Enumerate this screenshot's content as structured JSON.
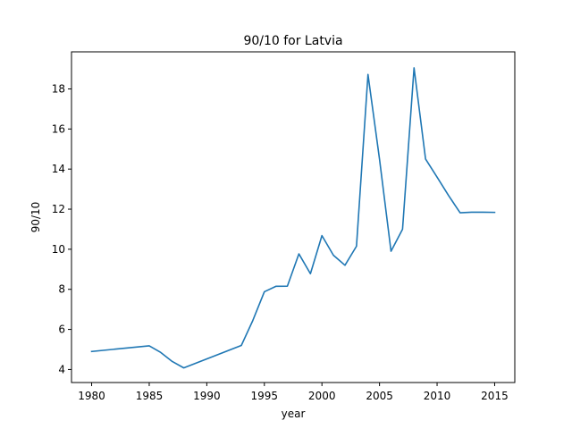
{
  "chart_data": {
    "type": "line",
    "title": "90/10 for Latvia",
    "xlabel": "year",
    "ylabel": "90/10",
    "xlim": [
      1978.25,
      1966.75
    ],
    "ylim": [
      3.35,
      19.85
    ],
    "xticks": [
      1980,
      1985,
      1990,
      1995,
      2000,
      2005,
      2010,
      2015
    ],
    "yticks": [
      4,
      6,
      8,
      10,
      12,
      14,
      16,
      18
    ],
    "grid": false,
    "line_color": "#1f77b4",
    "series": [
      {
        "x": [
          1980,
          1985,
          1986,
          1987,
          1988,
          1993,
          1994,
          1995,
          1996,
          1997,
          1998,
          1999,
          2000,
          2001,
          2002,
          2003,
          2004,
          2005,
          2006,
          2007,
          2008,
          2009,
          2010,
          2011,
          2012,
          2013,
          2014,
          2015
        ],
        "y": [
          4.9,
          5.18,
          4.85,
          4.4,
          4.08,
          5.2,
          6.45,
          7.88,
          8.15,
          8.16,
          9.77,
          8.78,
          10.68,
          9.7,
          9.2,
          10.15,
          18.72,
          14.5,
          9.9,
          11.0,
          19.05,
          14.5,
          13.6,
          12.68,
          11.82,
          11.85,
          11.85,
          11.84
        ]
      }
    ]
  }
}
